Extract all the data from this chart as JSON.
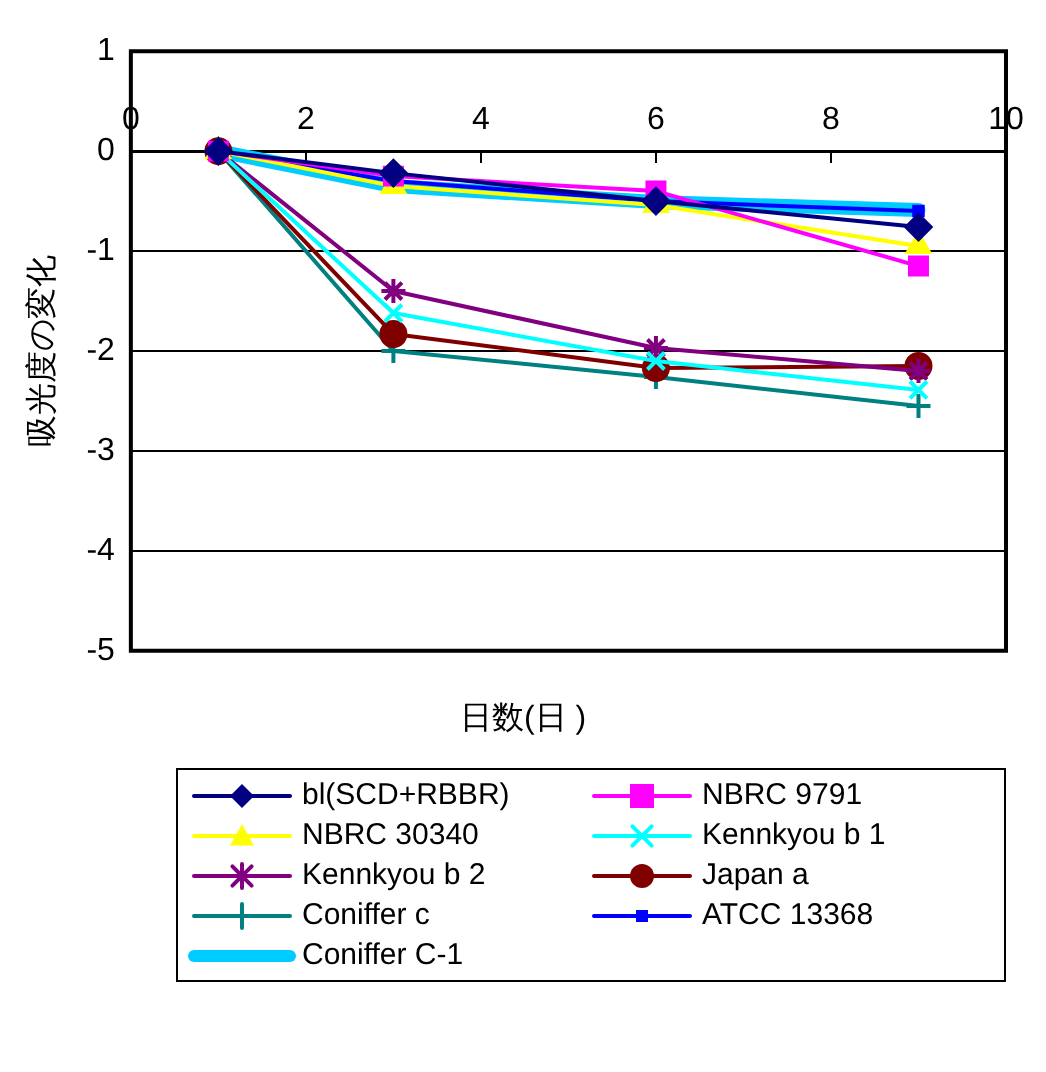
{
  "chart_data": {
    "type": "line",
    "xlabel": "日数(日 )",
    "ylabel": "吸光度の変化",
    "xlim": [
      0,
      10
    ],
    "xticks": [
      0,
      2,
      4,
      6,
      8,
      10
    ],
    "ylim": [
      -5,
      1
    ],
    "yticks": [
      1,
      0,
      -1,
      -2,
      -3,
      -4,
      -5
    ],
    "grid": "y",
    "legend": "bottom",
    "x": [
      1,
      3,
      6,
      9
    ],
    "series": [
      {
        "name": "bl(SCD+RBBR)",
        "color": "#000080",
        "marker": "diamond",
        "values": [
          0,
          -0.22,
          -0.5,
          -0.76
        ]
      },
      {
        "name": "NBRC 9791",
        "color": "#ff00ff",
        "marker": "square",
        "values": [
          0,
          -0.25,
          -0.4,
          -1.15
        ]
      },
      {
        "name": "NBRC 30340",
        "color": "#ffff00",
        "marker": "triangle",
        "values": [
          0,
          -0.35,
          -0.54,
          -0.95
        ]
      },
      {
        "name": "Kennkyou b 1",
        "color": "#00ffff",
        "marker": "cross",
        "values": [
          0,
          -1.62,
          -2.1,
          -2.39
        ]
      },
      {
        "name": "Kennkyou b 2",
        "color": "#800080",
        "marker": "cross",
        "values": [
          0,
          -1.4,
          -1.97,
          -2.2
        ]
      },
      {
        "name": "Japan a",
        "color": "#800000",
        "marker": "circle",
        "values": [
          0,
          -1.83,
          -2.17,
          -2.15
        ]
      },
      {
        "name": "Coniffer c",
        "color": "#008080",
        "marker": "cross",
        "values": [
          0,
          -2,
          -2.26,
          -2.55
        ]
      },
      {
        "name": "ATCC 13368",
        "color": "#0000ff",
        "marker": "square",
        "values": [
          0,
          -0.3,
          -0.5,
          -0.6
        ]
      },
      {
        "name": "Coniffer C-1",
        "color": "#00ccff",
        "marker": "none",
        "values": [
          0,
          -0.35,
          -0.51,
          -0.59
        ]
      }
    ]
  }
}
